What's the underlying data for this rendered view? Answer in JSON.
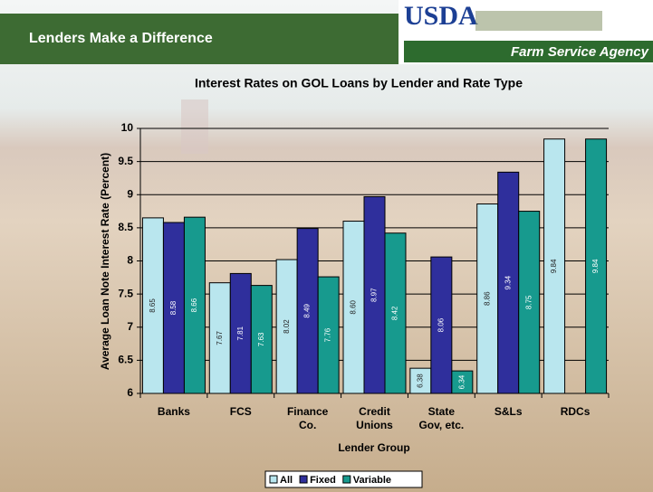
{
  "header": {
    "title": "Lenders Make a Difference",
    "logo": "USDA",
    "agency": "Farm Service Agency"
  },
  "chart_data": {
    "type": "bar",
    "title": "Interest Rates on GOL Loans by Lender and Rate Type",
    "x_label": "Lender Group",
    "y_label": "Average Loan Note Interest Rate (Percent)",
    "categories": [
      "Banks",
      "FCS",
      "Finance\nCo.",
      "Credit\nUnions",
      "State\nGov, etc.",
      "S&Ls",
      "RDCs"
    ],
    "series": [
      {
        "name": "All",
        "color": "#b9e6ee",
        "label_color": "#222222",
        "values": [
          8.65,
          7.67,
          8.02,
          8.6,
          6.38,
          8.86,
          9.84
        ],
        "value_labels": [
          "8.65",
          "7.67",
          "8.02",
          "8.60",
          "6.38",
          "8.86",
          "9.84"
        ]
      },
      {
        "name": "Fixed",
        "color": "#2f2f9c",
        "label_color": "#ffffff",
        "values": [
          8.58,
          7.81,
          8.49,
          8.97,
          8.06,
          9.34,
          null
        ],
        "value_labels": [
          "8.58",
          "7.81",
          "8.49",
          "8.97",
          "8.06",
          "9.34",
          null
        ]
      },
      {
        "name": "Variable",
        "color": "#179a8e",
        "label_color": "#ffffff",
        "values": [
          8.66,
          7.63,
          7.76,
          8.42,
          6.34,
          8.75,
          9.84
        ],
        "value_labels": [
          "8.66",
          "7.63",
          "7.76",
          "8.42",
          "6.34",
          "8.75",
          "9.84"
        ]
      }
    ],
    "ylim": [
      6,
      10
    ],
    "yticks": [
      6,
      6.5,
      7,
      7.5,
      8,
      8.5,
      9,
      9.5,
      10
    ],
    "grid": true,
    "legend": "bottom"
  }
}
